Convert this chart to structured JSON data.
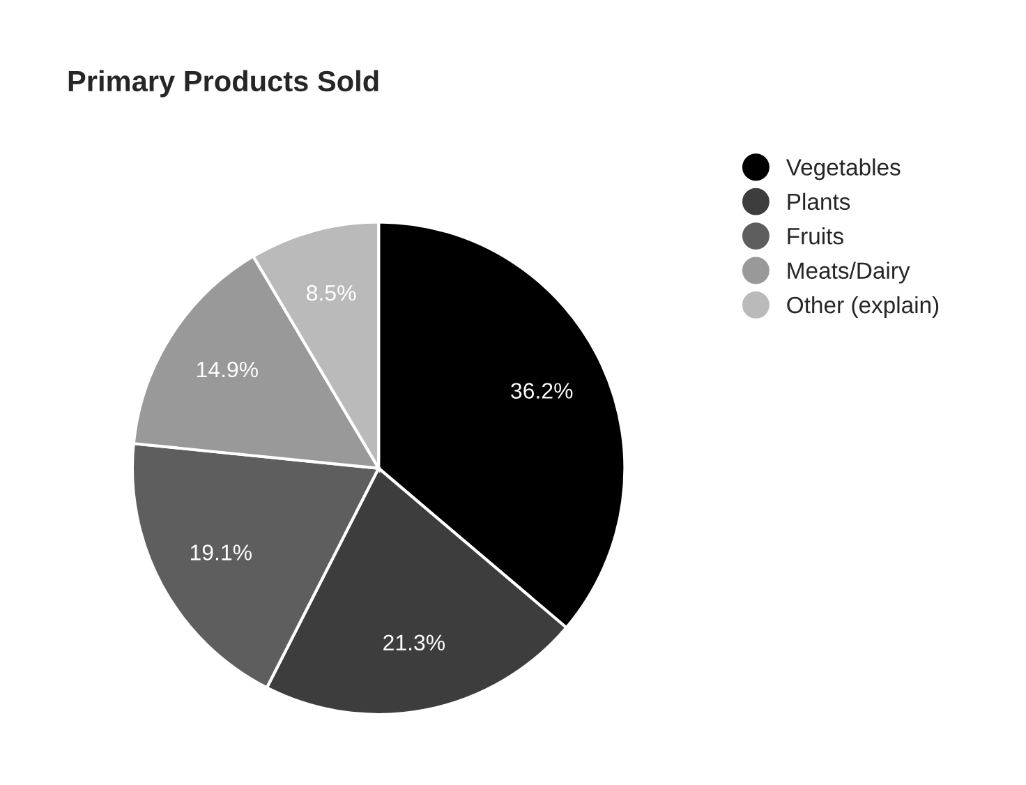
{
  "chart_data": {
    "type": "pie",
    "title": "Primary Products Sold",
    "categories": [
      "Vegetables",
      "Plants",
      "Fruits",
      "Meats/Dairy",
      "Other (explain)"
    ],
    "values": [
      36.2,
      21.3,
      19.1,
      14.9,
      8.5
    ],
    "colors": [
      "#000000",
      "#3d3d3d",
      "#5e5e5e",
      "#999999",
      "#bababa"
    ],
    "value_labels": [
      "36.2%",
      "21.3%",
      "19.1%",
      "14.9%",
      "8.5%"
    ],
    "legend": "right"
  }
}
